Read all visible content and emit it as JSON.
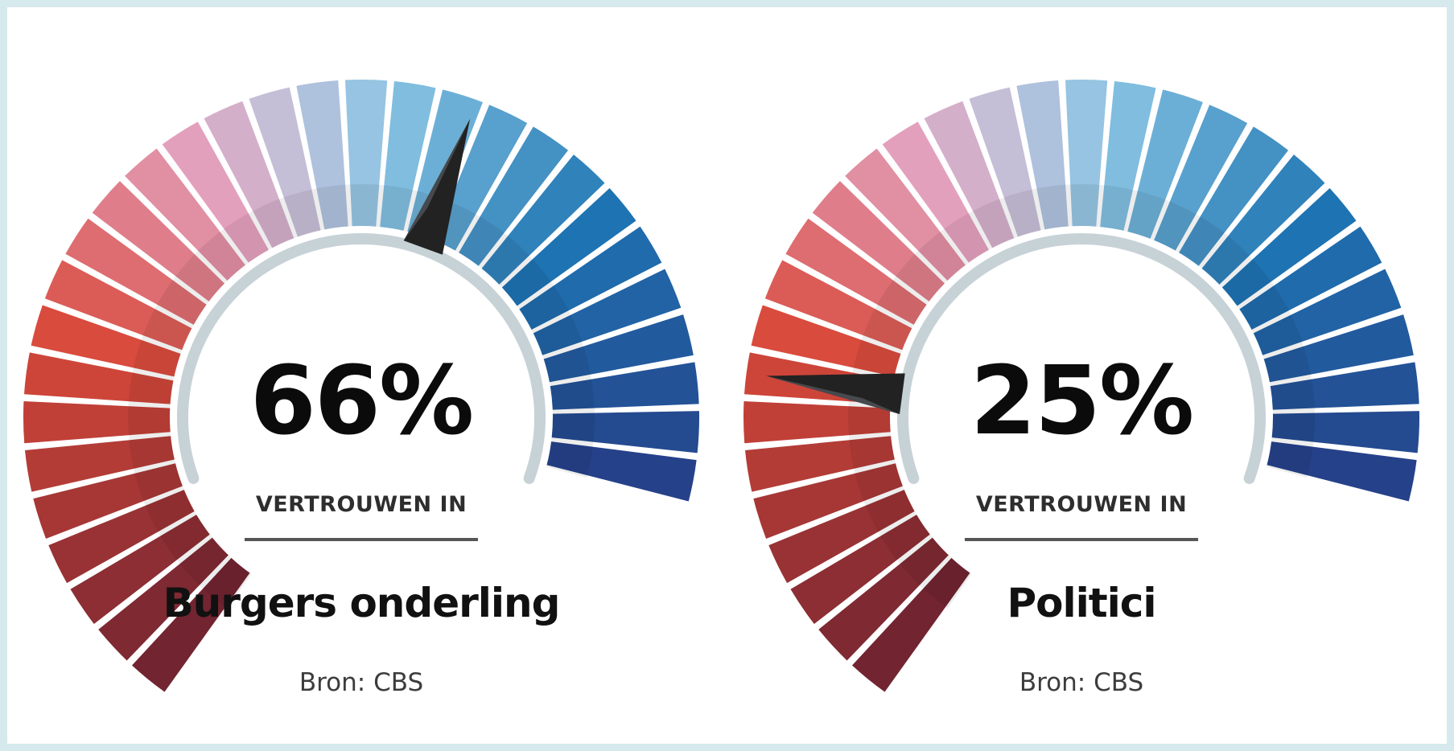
{
  "gauges": [
    {
      "value": 66,
      "value_text": "66%",
      "caption": "VERTROUWEN IN",
      "subject": "Burgers onderling",
      "source": "Bron: CBS"
    },
    {
      "value": 25,
      "value_text": "25%",
      "caption": "VERTROUWEN IN",
      "subject": "Politici",
      "source": "Bron: CBS"
    }
  ],
  "chart_data": [
    {
      "type": "gauge",
      "value": 66,
      "unit": "%",
      "range": [
        0,
        100
      ],
      "label": "VERTROUWEN IN Burgers onderling",
      "source": "Bron: CBS"
    },
    {
      "type": "gauge",
      "value": 25,
      "unit": "%",
      "range": [
        0,
        100
      ],
      "label": "VERTROUWEN IN Politici",
      "source": "Bron: CBS"
    }
  ],
  "colors": {
    "low_end": "#6b2230",
    "red": "#d9493a",
    "pink": "#e3a0bd",
    "neutral": "#c3bfd8",
    "light_blue": "#8ac5e4",
    "blue": "#1e74b3",
    "high_end": "#263d86",
    "needle": "#222222"
  }
}
